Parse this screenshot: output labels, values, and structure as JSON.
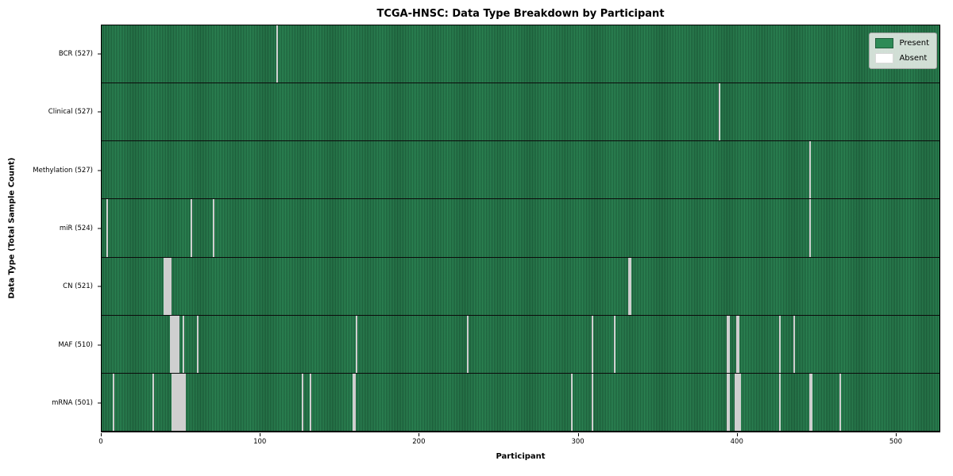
{
  "title": "TCGA-HNSC: Data Type Breakdown by Participant",
  "xlabel": "Participant",
  "ylabel": "Data Type (Total Sample Count)",
  "legend": {
    "present": "Present",
    "absent": "Absent"
  },
  "colors": {
    "present": "#2e8b57",
    "present_edge": "#1f5e3b",
    "absent": "#ffffff",
    "row_border": "#0b0b0b",
    "legend_bg": "#e9eee9"
  },
  "chart_data": {
    "type": "heatmap",
    "title": "TCGA-HNSC: Data Type Breakdown by Participant",
    "xlabel": "Participant",
    "ylabel": "Data Type (Total Sample Count)",
    "legend_entries": [
      "Present",
      "Absent"
    ],
    "legend_position": "upper right",
    "n_participants": 528,
    "xlim": [
      0,
      528
    ],
    "x_ticks": [
      0,
      100,
      200,
      300,
      400,
      500
    ],
    "rows": [
      {
        "label": "BCR (527)",
        "present_count": 527,
        "absent_participants": [
          110
        ]
      },
      {
        "label": "Clinical (527)",
        "present_count": 527,
        "absent_participants": [
          389
        ]
      },
      {
        "label": "Methylation (527)",
        "present_count": 527,
        "absent_participants": [
          446
        ]
      },
      {
        "label": "miR (524)",
        "present_count": 524,
        "absent_participants": [
          3,
          56,
          70,
          446
        ]
      },
      {
        "label": "CN (521)",
        "present_count": 521,
        "absent_participants": [
          39,
          40,
          41,
          42,
          43,
          332,
          333
        ]
      },
      {
        "label": "MAF (510)",
        "present_count": 510,
        "absent_participants": [
          43,
          44,
          45,
          46,
          47,
          48,
          51,
          60,
          160,
          230,
          309,
          323,
          394,
          395,
          400,
          401,
          427,
          436
        ]
      },
      {
        "label": "mRNA (501)",
        "present_count": 501,
        "absent_participants": [
          7,
          32,
          44,
          45,
          46,
          47,
          48,
          49,
          50,
          51,
          52,
          126,
          131,
          158,
          159,
          296,
          309,
          394,
          395,
          399,
          400,
          401,
          402,
          427,
          446,
          447,
          465
        ]
      }
    ]
  }
}
